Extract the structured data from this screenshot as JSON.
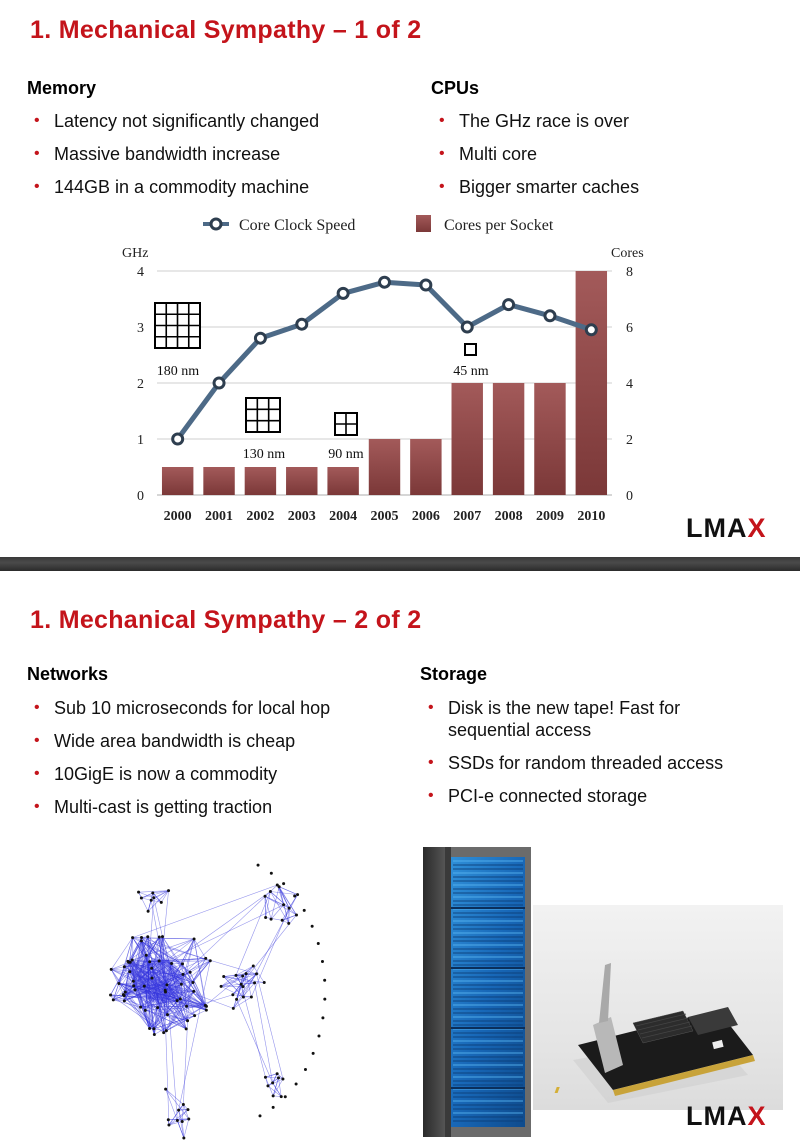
{
  "slide1": {
    "title": "1.  Mechanical Sympathy – 1 of 2",
    "memory": {
      "heading": "Memory",
      "bullets": [
        "Latency not significantly changed",
        "Massive bandwidth increase",
        "144GB in a commodity machine"
      ]
    },
    "cpus": {
      "heading": "CPUs",
      "bullets": [
        "The GHz race is over",
        "Multi core",
        "Bigger smarter caches"
      ]
    },
    "logo": {
      "main": "LMA",
      "accent": "X"
    }
  },
  "chart_data": {
    "type": "bar",
    "title": "",
    "legend": [
      {
        "name": "Core Clock Speed",
        "marker": "line-dot"
      },
      {
        "name": "Cores per Socket",
        "marker": "bar"
      }
    ],
    "legend_position": "top",
    "categories": [
      "2000",
      "2001",
      "2002",
      "2003",
      "2004",
      "2005",
      "2006",
      "2007",
      "2008",
      "2009",
      "2010"
    ],
    "series": [
      {
        "name": "Cores per Socket",
        "type": "bar",
        "axis": "right",
        "color": "#8e4a4a",
        "values": [
          1,
          1,
          1,
          1,
          1,
          2,
          2,
          4,
          4,
          4,
          8
        ]
      },
      {
        "name": "Core Clock Speed",
        "type": "line",
        "axis": "left",
        "color": "#4d6a87",
        "values": [
          1.0,
          2.0,
          2.8,
          3.05,
          3.6,
          3.8,
          3.75,
          3.0,
          3.4,
          3.2,
          2.95
        ]
      }
    ],
    "ylabel": "GHz",
    "ylim": [
      0,
      4
    ],
    "yticks": [
      "0",
      "1",
      "2",
      "3",
      "4"
    ],
    "y2label": "Cores",
    "y2lim": [
      0,
      8
    ],
    "y2ticks": [
      "0",
      "2",
      "4",
      "6",
      "8"
    ],
    "grid": true,
    "annotations": [
      {
        "label": "180 nm",
        "category": "2000",
        "grid_cells": 4
      },
      {
        "label": "130 nm",
        "category": "2002",
        "grid_cells": 3
      },
      {
        "label": "90 nm",
        "category": "2004",
        "grid_cells": 2
      },
      {
        "label": "45 nm",
        "category": "2007",
        "grid_cells": 1
      }
    ]
  },
  "slide2": {
    "title": "1.  Mechanical Sympathy – 2 of 2",
    "networks": {
      "heading": "Networks",
      "bullets": [
        "Sub 10 microseconds for local hop",
        "Wide area bandwidth is cheap",
        "10GigE is now a commodity",
        "Multi-cast is getting traction"
      ]
    },
    "storage": {
      "heading": "Storage",
      "bullets": [
        "Disk is the new tape!  Fast for sequential access",
        "SSDs for random threaded access",
        "PCI-e connected storage"
      ]
    },
    "images": {
      "network": "network-graph",
      "server": "server-rack",
      "ssd": "pcie-ssd-card"
    },
    "logo": {
      "main": "LMA",
      "accent": "X"
    }
  }
}
